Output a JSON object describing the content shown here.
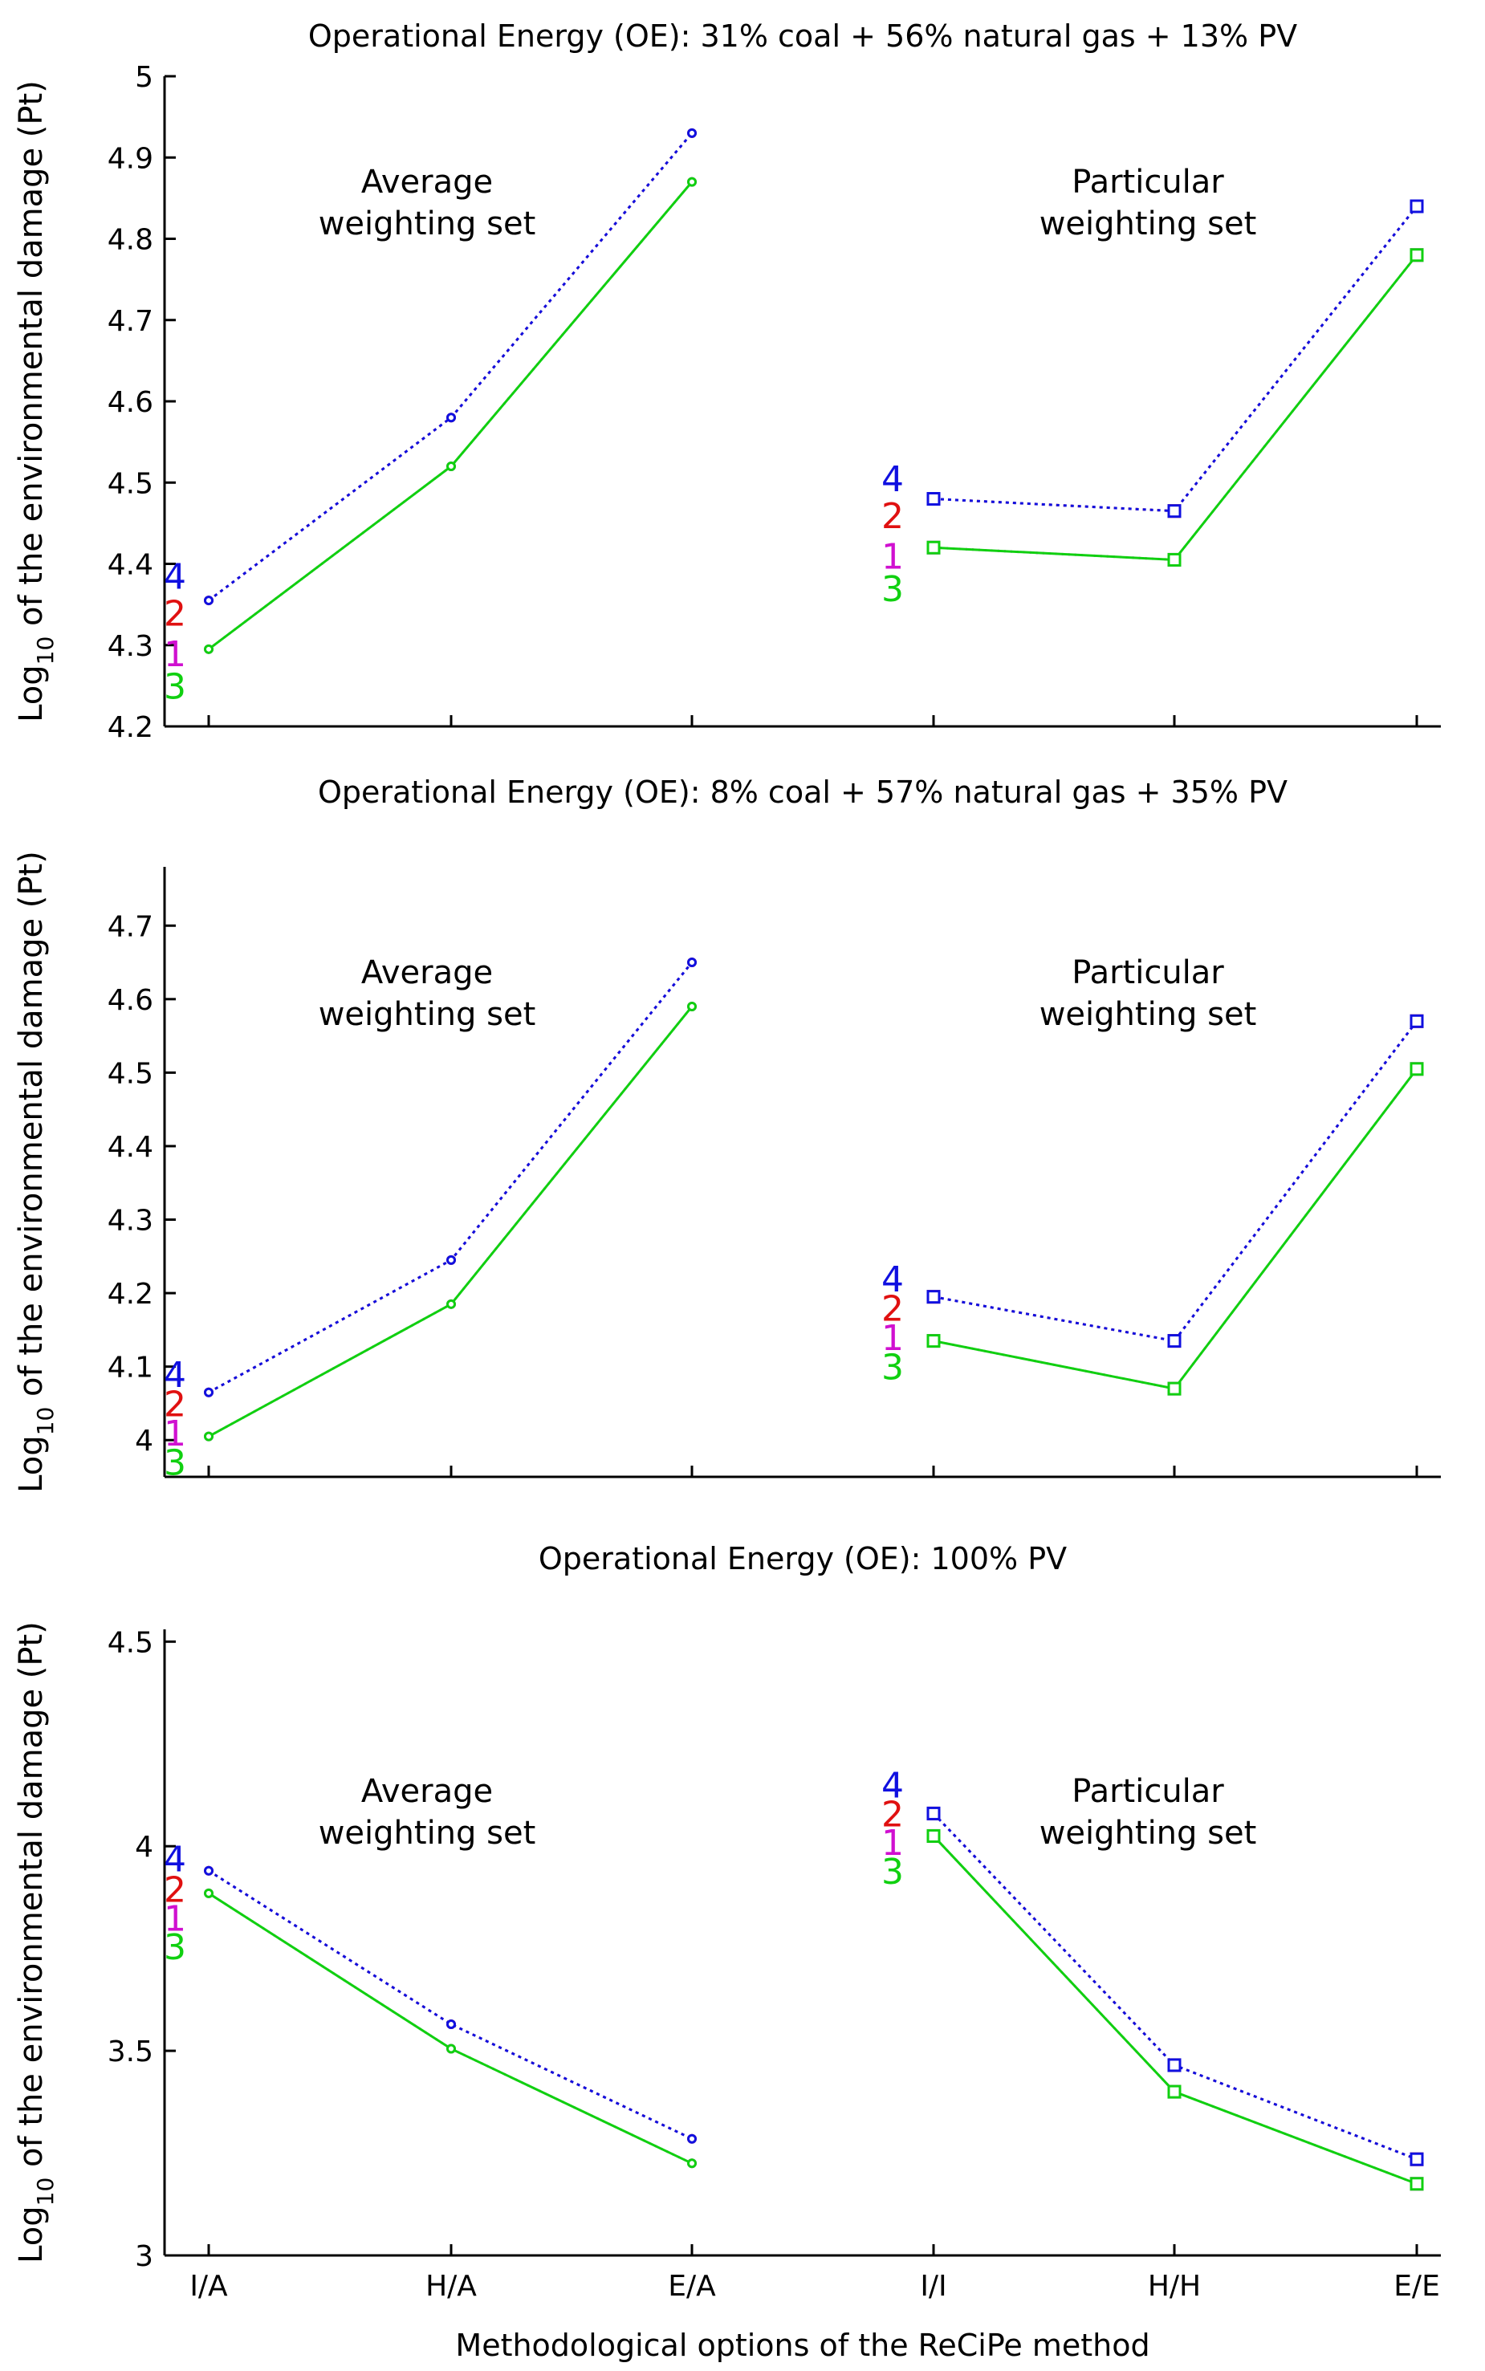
{
  "figure": {
    "xlabel": "Methodological options of the ReCiPe method",
    "ylabel_prefix": "Log",
    "ylabel_sub": "10",
    "ylabel_suffix": " of the environmental damage (Pt)"
  },
  "colors": {
    "series_4": "#1010e0",
    "series_2": "#e01010",
    "series_1": "#d010d0",
    "series_3": "#10d010",
    "axis": "#000000"
  },
  "chart_data": [
    {
      "type": "line",
      "title": "Operational Energy (OE): 31% coal + 56% natural gas + 13% PV",
      "categories": [
        "I/A",
        "H/A",
        "E/A",
        "I/I",
        "H/H",
        "E/E"
      ],
      "show_xticklabels": false,
      "ylim": [
        4.2,
        5.0
      ],
      "yticks": [
        "4.2",
        "4.3",
        "4.4",
        "4.5",
        "4.6",
        "4.7",
        "4.8",
        "4.9",
        "5"
      ],
      "groups": [
        {
          "annotation_line1": "Average",
          "annotation_line2": "weighting set",
          "categories": [
            "I/A",
            "H/A",
            "E/A"
          ],
          "marker": "dot",
          "series": [
            {
              "name": "4",
              "color_key": "series_4",
              "values": [
                4.355,
                4.58,
                4.93
              ]
            },
            {
              "name": "2",
              "color_key": "series_2",
              "values": [
                4.355,
                4.58,
                4.93
              ]
            },
            {
              "name": "1",
              "color_key": "series_1",
              "values": [
                4.295,
                4.52,
                4.87
              ]
            },
            {
              "name": "3",
              "color_key": "series_3",
              "values": [
                4.295,
                4.52,
                4.87
              ]
            }
          ],
          "labels": [
            {
              "text": "4",
              "color_key": "series_4",
              "y": 4.385
            },
            {
              "text": "2",
              "color_key": "series_2",
              "y": 4.34
            },
            {
              "text": "1",
              "color_key": "series_1",
              "y": 4.29
            },
            {
              "text": "3",
              "color_key": "series_3",
              "y": 4.25
            }
          ]
        },
        {
          "annotation_line1": "Particular",
          "annotation_line2": "weighting set",
          "categories": [
            "I/I",
            "H/H",
            "E/E"
          ],
          "marker": "square",
          "series": [
            {
              "name": "4",
              "color_key": "series_4",
              "values": [
                4.48,
                4.465,
                4.84
              ]
            },
            {
              "name": "2",
              "color_key": "series_2",
              "values": [
                4.48,
                4.465,
                4.84
              ]
            },
            {
              "name": "1",
              "color_key": "series_1",
              "values": [
                4.42,
                4.405,
                4.78
              ]
            },
            {
              "name": "3",
              "color_key": "series_3",
              "values": [
                4.42,
                4.405,
                4.78
              ]
            }
          ],
          "labels": [
            {
              "text": "4",
              "color_key": "series_4",
              "y": 4.505
            },
            {
              "text": "2",
              "color_key": "series_2",
              "y": 4.46
            },
            {
              "text": "1",
              "color_key": "series_1",
              "y": 4.41
            },
            {
              "text": "3",
              "color_key": "series_3",
              "y": 4.37
            }
          ]
        }
      ]
    },
    {
      "type": "line",
      "title": "Operational Energy (OE): 8% coal + 57% natural gas + 35% PV",
      "categories": [
        "I/A",
        "H/A",
        "E/A",
        "I/I",
        "H/H",
        "E/E"
      ],
      "show_xticklabels": false,
      "ylim": [
        3.95,
        4.78
      ],
      "yticks": [
        "4",
        "4.1",
        "4.2",
        "4.3",
        "4.4",
        "4.5",
        "4.6",
        "4.7"
      ],
      "groups": [
        {
          "annotation_line1": "Average",
          "annotation_line2": "weighting set",
          "categories": [
            "I/A",
            "H/A",
            "E/A"
          ],
          "marker": "dot",
          "series": [
            {
              "name": "4",
              "color_key": "series_4",
              "values": [
                4.065,
                4.245,
                4.65
              ]
            },
            {
              "name": "2",
              "color_key": "series_2",
              "values": [
                4.065,
                4.245,
                4.65
              ]
            },
            {
              "name": "1",
              "color_key": "series_1",
              "values": [
                4.005,
                4.185,
                4.59
              ]
            },
            {
              "name": "3",
              "color_key": "series_3",
              "values": [
                4.005,
                4.185,
                4.59
              ]
            }
          ],
          "labels": [
            {
              "text": "4",
              "color_key": "series_4",
              "y": 4.09
            },
            {
              "text": "2",
              "color_key": "series_2",
              "y": 4.05
            },
            {
              "text": "1",
              "color_key": "series_1",
              "y": 4.01
            },
            {
              "text": "3",
              "color_key": "series_3",
              "y": 3.97
            }
          ]
        },
        {
          "annotation_line1": "Particular",
          "annotation_line2": "weighting set",
          "categories": [
            "I/I",
            "H/H",
            "E/E"
          ],
          "marker": "square",
          "series": [
            {
              "name": "4",
              "color_key": "series_4",
              "values": [
                4.195,
                4.135,
                4.57
              ]
            },
            {
              "name": "2",
              "color_key": "series_2",
              "values": [
                4.195,
                4.135,
                4.57
              ]
            },
            {
              "name": "1",
              "color_key": "series_1",
              "values": [
                4.135,
                4.07,
                4.505
              ]
            },
            {
              "name": "3",
              "color_key": "series_3",
              "values": [
                4.135,
                4.07,
                4.505
              ]
            }
          ],
          "labels": [
            {
              "text": "4",
              "color_key": "series_4",
              "y": 4.22
            },
            {
              "text": "2",
              "color_key": "series_2",
              "y": 4.18
            },
            {
              "text": "1",
              "color_key": "series_1",
              "y": 4.14
            },
            {
              "text": "3",
              "color_key": "series_3",
              "y": 4.1
            }
          ]
        }
      ]
    },
    {
      "type": "line",
      "title": "Operational Energy (OE): 100% PV",
      "categories": [
        "I/A",
        "H/A",
        "E/A",
        "I/I",
        "H/H",
        "E/E"
      ],
      "show_xticklabels": true,
      "ylim": [
        3.0,
        4.53
      ],
      "yticks": [
        "3",
        "3.5",
        "4",
        "4.5"
      ],
      "groups": [
        {
          "annotation_line1": "Average",
          "annotation_line2": "weighting set",
          "categories": [
            "I/A",
            "H/A",
            "E/A"
          ],
          "marker": "dot",
          "series": [
            {
              "name": "4",
              "color_key": "series_4",
              "values": [
                3.94,
                3.565,
                3.285
              ]
            },
            {
              "name": "2",
              "color_key": "series_2",
              "values": [
                3.94,
                3.565,
                3.285
              ]
            },
            {
              "name": "1",
              "color_key": "series_1",
              "values": [
                3.885,
                3.505,
                3.225
              ]
            },
            {
              "name": "3",
              "color_key": "series_3",
              "values": [
                3.885,
                3.505,
                3.225
              ]
            }
          ],
          "labels": [
            {
              "text": "4",
              "color_key": "series_4",
              "y": 3.97
            },
            {
              "text": "2",
              "color_key": "series_2",
              "y": 3.895
            },
            {
              "text": "1",
              "color_key": "series_1",
              "y": 3.825
            },
            {
              "text": "3",
              "color_key": "series_3",
              "y": 3.755
            }
          ]
        },
        {
          "annotation_line1": "Particular",
          "annotation_line2": "weighting set",
          "categories": [
            "I/I",
            "H/H",
            "E/E"
          ],
          "marker": "square",
          "series": [
            {
              "name": "4",
              "color_key": "series_4",
              "values": [
                4.08,
                3.465,
                3.235
              ]
            },
            {
              "name": "2",
              "color_key": "series_2",
              "values": [
                4.08,
                3.465,
                3.235
              ]
            },
            {
              "name": "1",
              "color_key": "series_1",
              "values": [
                4.025,
                3.4,
                3.175
              ]
            },
            {
              "name": "3",
              "color_key": "series_3",
              "values": [
                4.025,
                3.4,
                3.175
              ]
            }
          ],
          "labels": [
            {
              "text": "4",
              "color_key": "series_4",
              "y": 4.15
            },
            {
              "text": "2",
              "color_key": "series_2",
              "y": 4.08
            },
            {
              "text": "1",
              "color_key": "series_1",
              "y": 4.01
            },
            {
              "text": "3",
              "color_key": "series_3",
              "y": 3.94
            }
          ]
        }
      ]
    }
  ]
}
